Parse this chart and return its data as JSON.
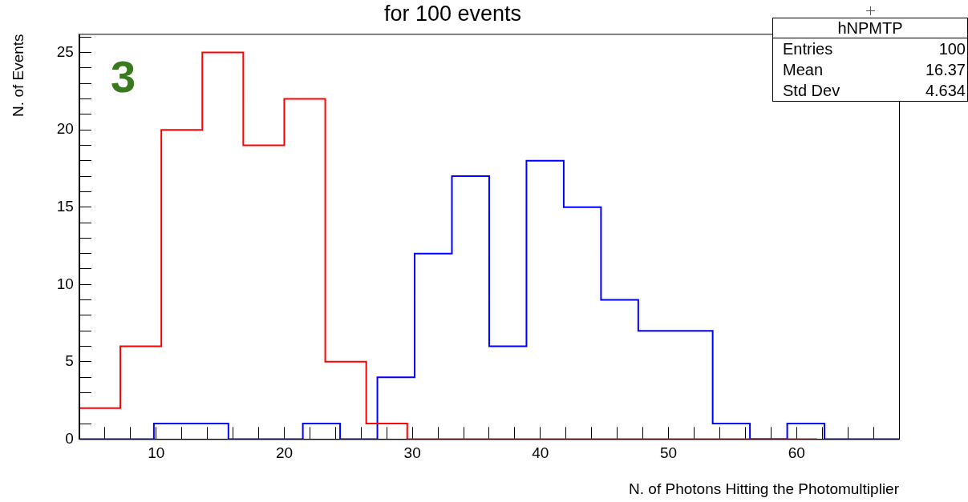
{
  "chart_data": {
    "type": "step",
    "title": "for 100 events",
    "xlabel": "N. of Photons Hitting the Photomultiplier",
    "ylabel": "N. of Events",
    "annotations": [
      "3",
      "hNPMTP",
      "Entries",
      "100",
      "Mean",
      "16.37",
      "Std Dev",
      "4.634"
    ],
    "series": [
      {
        "color": "#ff0000",
        "x": [
          4,
          7.2,
          10.4,
          13.6,
          16.8,
          20,
          23.2,
          26.4,
          29.6,
          32.8,
          36,
          39.2,
          42.4,
          45.6,
          48.8,
          52,
          55.2,
          58.4,
          61.6
        ],
        "values": [
          2,
          6,
          20,
          25,
          19,
          22,
          5,
          1,
          0,
          0,
          0,
          0,
          0,
          0,
          0,
          0,
          0,
          0,
          0
        ]
      },
      {
        "color": "#0000ff",
        "x": [
          4,
          6.91,
          9.82,
          12.73,
          15.64,
          18.55,
          21.45,
          24.36,
          27.27,
          30.18,
          33.09,
          36,
          38.91,
          41.82,
          44.73,
          47.64,
          50.55,
          53.45,
          56.36,
          59.27,
          62.18,
          65.09,
          68
        ],
        "values": [
          0,
          0,
          1,
          1,
          0,
          0,
          1,
          0,
          4,
          12,
          17,
          6,
          18,
          15,
          9,
          7,
          7,
          1,
          0,
          1,
          0,
          0,
          0
        ]
      }
    ],
    "xlim": [
      4,
      68
    ],
    "xticks": [
      {
        "value": 6,
        "label": null
      },
      {
        "value": 8,
        "label": null
      },
      10,
      {
        "value": 12,
        "label": null
      },
      {
        "value": 14,
        "label": null
      },
      {
        "value": 16,
        "label": null
      },
      {
        "value": 18,
        "label": null
      },
      20,
      {
        "value": 22,
        "label": null
      },
      {
        "value": 24,
        "label": null
      },
      {
        "value": 26,
        "label": null
      },
      {
        "value": 28,
        "label": null
      },
      30,
      {
        "value": 32,
        "label": null
      },
      {
        "value": 34,
        "label": null
      },
      {
        "value": 36,
        "label": null
      },
      {
        "value": 38,
        "label": null
      },
      40,
      {
        "value": 42,
        "label": null
      },
      {
        "value": 44,
        "label": null
      },
      {
        "value": 46,
        "label": null
      },
      {
        "value": 48,
        "label": null
      },
      50,
      {
        "value": 52,
        "label": null
      },
      {
        "value": 54,
        "label": null
      },
      {
        "value": 56,
        "label": null
      },
      {
        "value": 58,
        "label": null
      },
      60,
      {
        "value": 62,
        "label": null
      },
      {
        "value": 64,
        "label": null
      },
      {
        "value": 66,
        "label": null
      }
    ],
    "ylim": [
      0,
      26.2
    ],
    "yticks": [
      0,
      {
        "value": 1,
        "label": null
      },
      {
        "value": 2,
        "label": null
      },
      {
        "value": 3,
        "label": null
      },
      {
        "value": 4,
        "label": null
      },
      5,
      {
        "value": 6,
        "label": null
      },
      {
        "value": 7,
        "label": null
      },
      {
        "value": 8,
        "label": null
      },
      {
        "value": 9,
        "label": null
      },
      10,
      {
        "value": 11,
        "label": null
      },
      {
        "value": 12,
        "label": null
      },
      {
        "value": 13,
        "label": null
      },
      {
        "value": 14,
        "label": null
      },
      15,
      {
        "value": 16,
        "label": null
      },
      {
        "value": 17,
        "label": null
      },
      {
        "value": 18,
        "label": null
      },
      {
        "value": 19,
        "label": null
      },
      20,
      {
        "value": 21,
        "label": null
      },
      {
        "value": 22,
        "label": null
      },
      {
        "value": 23,
        "label": null
      },
      {
        "value": 24,
        "label": null
      },
      25,
      {
        "value": 26,
        "label": null
      }
    ],
    "grid": false,
    "legend": false
  }
}
